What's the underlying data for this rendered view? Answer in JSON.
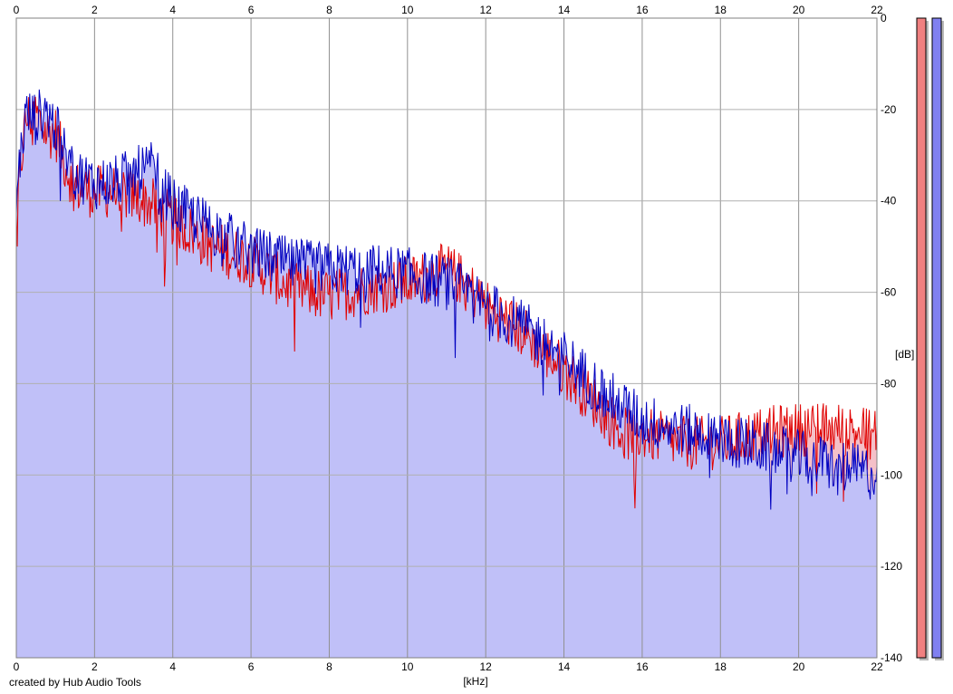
{
  "credit": "created by Hub Audio Tools",
  "chart_data": {
    "type": "area",
    "title": "",
    "xlabel": "[kHz]",
    "ylabel": "[dB]",
    "xlim": [
      0,
      22
    ],
    "ylim": [
      -140,
      0
    ],
    "x_ticks": [
      0,
      2,
      4,
      6,
      8,
      10,
      12,
      14,
      16,
      18,
      20,
      22
    ],
    "y_ticks": [
      0,
      -20,
      -40,
      -60,
      -80,
      -100,
      -120,
      -140
    ],
    "grid": true,
    "x_ticks_top_and_bottom": true,
    "y_ticks_side": "right",
    "series": [
      {
        "color": "#e00000",
        "fill": "#f4c0c8",
        "x": [
          0,
          0.1,
          0.25,
          0.5,
          0.75,
          1.0,
          1.25,
          1.5,
          2.0,
          2.5,
          3.0,
          3.5,
          4.0,
          5.0,
          6.0,
          7.0,
          8.0,
          9.0,
          10.0,
          11.0,
          11.5,
          12.0,
          13.0,
          14.0,
          15.0,
          15.5,
          16.0,
          17.0,
          18.0,
          19.0,
          20.0,
          21.0,
          22.0
        ],
        "values": [
          -45,
          -33,
          -22,
          -21,
          -25,
          -25,
          -32,
          -37,
          -38,
          -38,
          -39,
          -41,
          -44,
          -50,
          -53,
          -59,
          -61,
          -59,
          -58,
          -55,
          -58,
          -63,
          -69,
          -77,
          -86,
          -91,
          -91,
          -93,
          -93,
          -91,
          -90,
          -90,
          -91
        ]
      },
      {
        "color": "#0000c0",
        "fill": "#c0c0f8",
        "x": [
          0,
          0.1,
          0.25,
          0.5,
          0.75,
          1.0,
          1.25,
          1.5,
          2.0,
          2.5,
          3.0,
          3.5,
          4.0,
          5.0,
          6.0,
          7.0,
          8.0,
          9.0,
          10.0,
          11.0,
          11.5,
          12.0,
          13.0,
          14.0,
          15.0,
          15.5,
          16.0,
          17.0,
          18.0,
          19.0,
          20.0,
          21.0,
          22.0
        ],
        "values": [
          -40,
          -30,
          -21,
          -22,
          -20,
          -24,
          -30,
          -34,
          -36,
          -36,
          -34,
          -33,
          -41,
          -46,
          -51,
          -54,
          -55,
          -55,
          -56,
          -58,
          -60,
          -63,
          -68,
          -74,
          -82,
          -85,
          -88,
          -90,
          -92,
          -94,
          -96,
          -98,
          -100
        ]
      }
    ],
    "level_meters": [
      {
        "color": "#f08080"
      },
      {
        "color": "#8080f0"
      }
    ]
  }
}
